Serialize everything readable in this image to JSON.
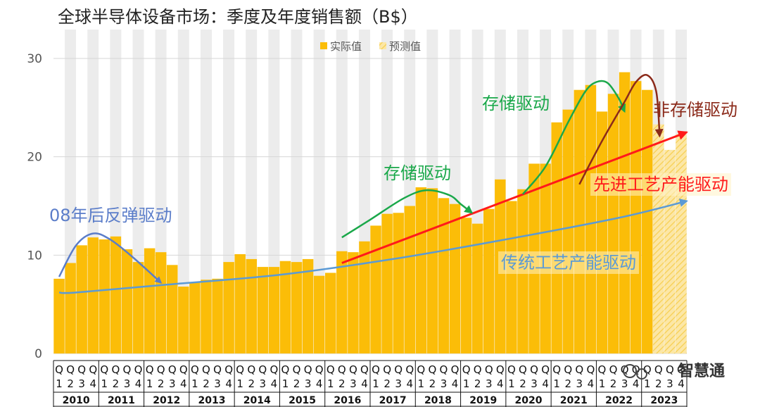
{
  "chart_data": {
    "type": "bar",
    "title": "全球半导体设备市场：季度及年度销售额（B$）",
    "ylim": [
      0,
      30
    ],
    "yticks": [
      0,
      10,
      20,
      30
    ],
    "quarter_labels": [
      "Q\n1",
      "Q\n2",
      "Q\n3",
      "Q\n4"
    ],
    "years": [
      "2010",
      "2011",
      "2012",
      "2013",
      "2014",
      "2015",
      "2016",
      "2017",
      "2018",
      "2019",
      "2020",
      "2021",
      "2022",
      "2023"
    ],
    "legend": [
      {
        "name": "实际值",
        "color": "#fbbd08"
      },
      {
        "name": "预测值",
        "color": "#fbe08a"
      }
    ],
    "series": [
      {
        "name": "实际值",
        "values": [
          7.6,
          9.2,
          11.0,
          11.8,
          11.6,
          11.9,
          10.6,
          9.3,
          10.7,
          10.3,
          9.0,
          6.8,
          7.2,
          7.5,
          7.6,
          9.3,
          10.1,
          9.6,
          8.8,
          8.8,
          9.4,
          9.3,
          9.6,
          7.9,
          8.2,
          10.4,
          10.3,
          11.4,
          13.0,
          14.2,
          14.3,
          15.0,
          16.9,
          16.8,
          15.8,
          15.2,
          13.8,
          13.2,
          14.7,
          17.7,
          15.5,
          16.7,
          19.3,
          19.3,
          23.5,
          24.8,
          26.8,
          27.3,
          24.6,
          26.4,
          28.6,
          27.7,
          26.8
        ],
        "forecast": false
      },
      {
        "name": "预测值",
        "values": [
          23.3,
          20.7,
          22.3
        ],
        "start_index": 53,
        "forecast": true
      }
    ],
    "trend_lines": [
      {
        "name": "08年后反弹驱动",
        "color": "#5b7dc9",
        "points": [
          [
            0.5,
            7.8
          ],
          [
            2,
            11.0
          ],
          [
            3.5,
            12.2
          ],
          [
            5,
            11.6
          ],
          [
            7,
            9.8
          ],
          [
            9.5,
            7.2
          ]
        ]
      },
      {
        "name": "传统工艺产能驱动",
        "color": "#5b9ad5",
        "points": [
          [
            0.5,
            6.2
          ],
          [
            2,
            6.2
          ],
          [
            10,
            7.0
          ],
          [
            20,
            8.0
          ],
          [
            30,
            9.6
          ],
          [
            40,
            11.6
          ],
          [
            50,
            13.8
          ],
          [
            56,
            15.5
          ]
        ]
      },
      {
        "name": "先进工艺产能驱动",
        "color": "#ff1a1a",
        "points": [
          [
            25.5,
            9.2
          ],
          [
            56,
            22.5
          ]
        ]
      },
      {
        "name": "存储驱动",
        "color": "#1aa84a",
        "points": [
          [
            25.5,
            11.8
          ],
          [
            28,
            13.6
          ],
          [
            31,
            15.8
          ],
          [
            33,
            16.6
          ],
          [
            35,
            16.1
          ],
          [
            36,
            15.2
          ],
          [
            37,
            14.3
          ]
        ]
      },
      {
        "name": "存储驱动",
        "color": "#1aa84a",
        "points": [
          [
            41.5,
            16.2
          ],
          [
            43.5,
            19.0
          ],
          [
            45.5,
            23.5
          ],
          [
            47,
            26.6
          ],
          [
            48,
            27.6
          ],
          [
            49,
            27.5
          ],
          [
            50,
            25.9
          ],
          [
            50.5,
            24.6
          ]
        ]
      },
      {
        "name": "非存储驱动",
        "color": "#8b2a1a",
        "points": [
          [
            46.5,
            17.2
          ],
          [
            48.5,
            21.6
          ],
          [
            50.5,
            25.6
          ],
          [
            51.5,
            27.6
          ],
          [
            52.5,
            28.3
          ],
          [
            53.3,
            26.6
          ],
          [
            53.6,
            22.1
          ]
        ]
      }
    ],
    "annotations": [
      {
        "text": "08年后反弹驱动",
        "color": "#5b7dc9"
      },
      {
        "text": "存储驱动",
        "color": "#1aa84a"
      },
      {
        "text": "存储驱动",
        "color": "#1aa84a"
      },
      {
        "text": "非存储驱动",
        "color": "#8b2a1a"
      },
      {
        "text": "先进工艺产能驱动",
        "color": "#ff1a1a"
      },
      {
        "text": "传统工艺产能驱动",
        "color": "#5b9ad5"
      }
    ],
    "watermark": "智慧通"
  }
}
